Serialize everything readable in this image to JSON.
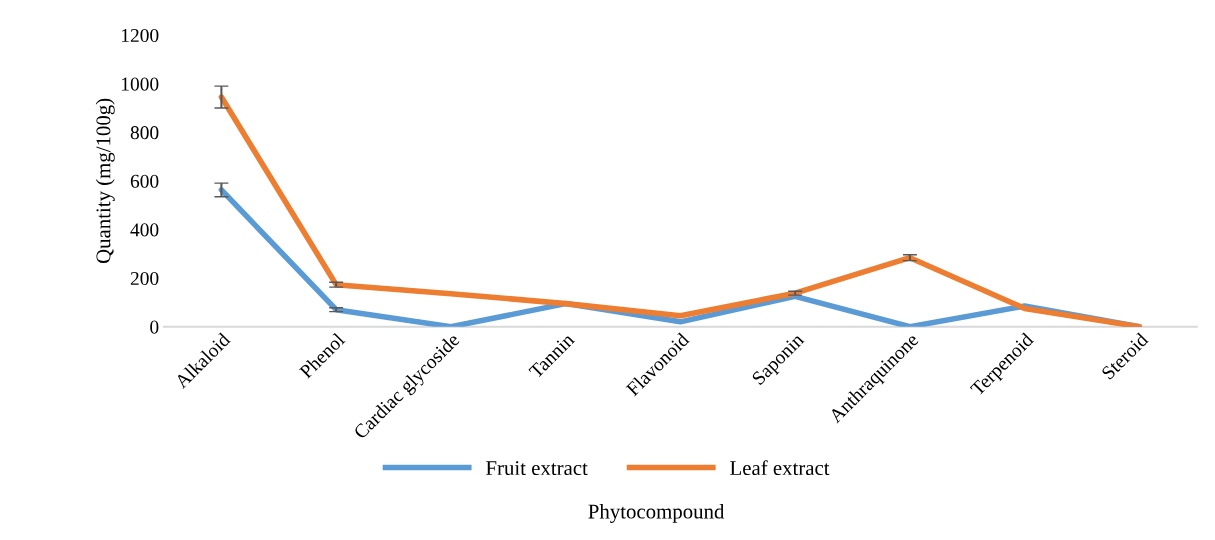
{
  "chart_data": {
    "type": "line",
    "xlabel": "Phytocompound",
    "ylabel": "Quantity (mg/100g)",
    "categories": [
      "Alkaloid",
      "Phenol",
      "Cardiac glycoside",
      "Tannin",
      "Flavonoid",
      "Saponin",
      "Anthraquinone",
      "Terpenoid",
      "Steroid"
    ],
    "series": [
      {
        "name": "Fruit extract",
        "color": "#5b9bd5",
        "values": [
          563,
          70,
          0,
          95,
          20,
          125,
          0,
          85,
          0
        ],
        "errors": [
          28,
          8,
          null,
          null,
          null,
          null,
          null,
          null,
          null
        ]
      },
      {
        "name": "Leaf extract",
        "color": "#ed7d31",
        "values": [
          945,
          173,
          136,
          95,
          45,
          138,
          284,
          75,
          0
        ],
        "errors": [
          45,
          10,
          null,
          null,
          null,
          8,
          12,
          null,
          null
        ]
      }
    ],
    "ylim": [
      0,
      1200
    ],
    "yticks": [
      0,
      200,
      400,
      600,
      800,
      1000,
      1200
    ],
    "grid": false,
    "legend": "bottom",
    "marker": "none",
    "line_style": "solid"
  }
}
